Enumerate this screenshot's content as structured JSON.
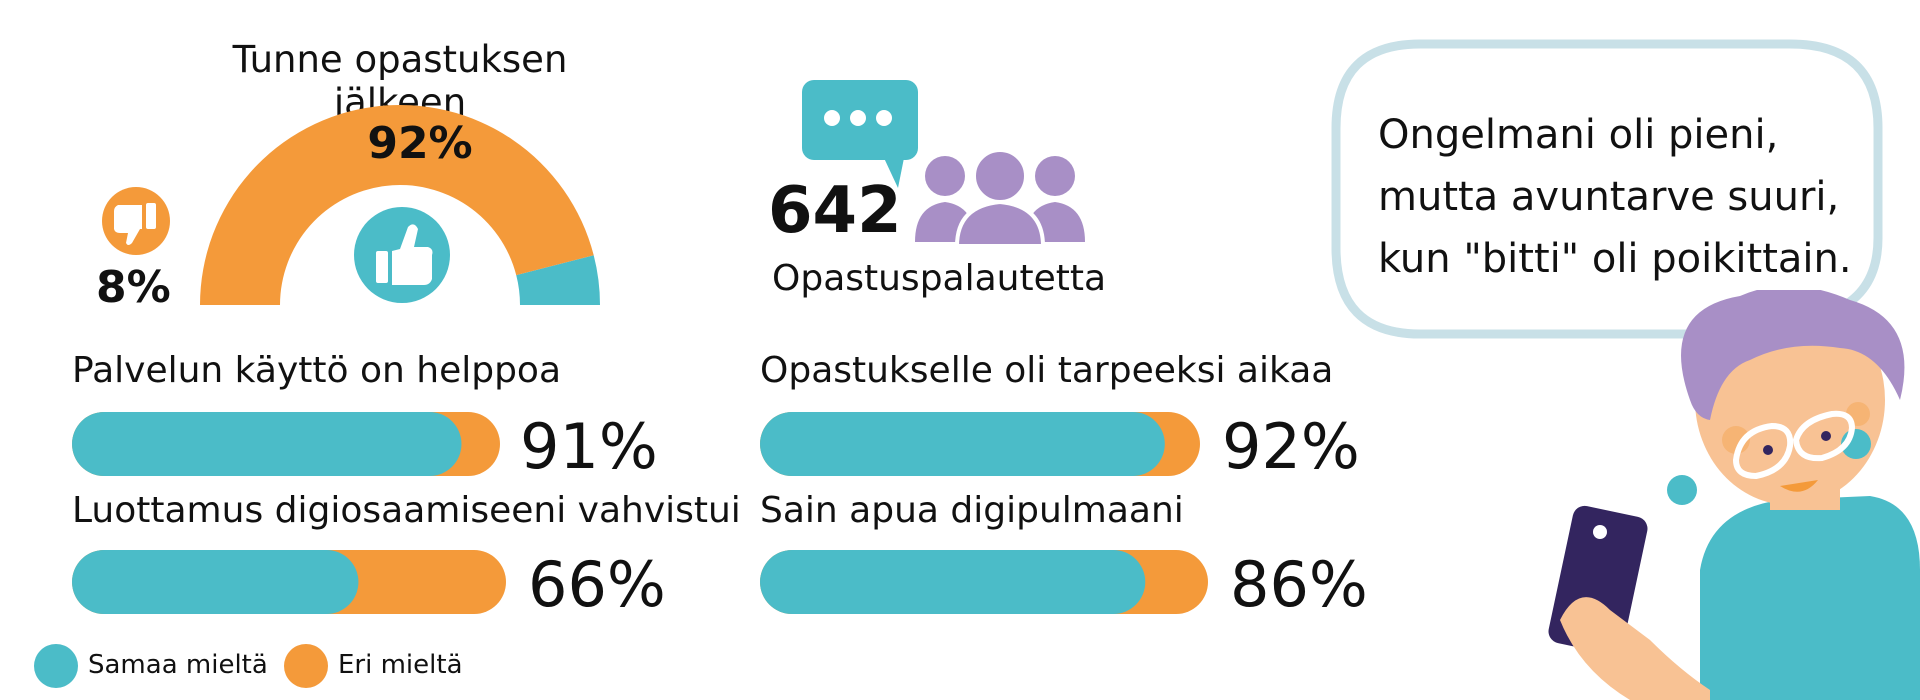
{
  "colors": {
    "agree": "#4bbcc8",
    "disagree": "#f49a3a",
    "people": "#a88fc6",
    "bubble_border": "#c8e0e7",
    "phone": "#33255f",
    "skin": "#f8c294"
  },
  "icons": {
    "thumbs_up": "thumbs-up-icon",
    "thumbs_down": "thumbs-down-icon",
    "chat": "chat-bubble-icon",
    "people": "people-group-icon"
  },
  "gauge": {
    "title": "Tunne opastuksen jälkeen",
    "agree_label": "92%",
    "disagree_label": "8%"
  },
  "feedback": {
    "count": "642",
    "label": "Opastuspalautetta"
  },
  "quote": {
    "lines": [
      "Ongelmani oli pieni,",
      "mutta avuntarve suuri,",
      "kun \"bitti\" oli poikittain."
    ]
  },
  "legend": {
    "agree": "Samaa mieltä",
    "disagree": "Eri mieltä"
  },
  "chart_data": [
    {
      "type": "pie",
      "title": "Tunne opastuksen jälkeen",
      "categories": [
        "Samaa mieltä",
        "Eri mieltä"
      ],
      "values": [
        92,
        8
      ]
    },
    {
      "type": "bar",
      "categories": [
        "Palvelun käyttö on helppoa",
        "Luottamus digiosaamiseeni vahvistui",
        "Opastukselle oli tarpeeksi aikaa",
        "Sain apua digipulmaani"
      ],
      "series": [
        {
          "name": "Samaa mieltä",
          "values": [
            91,
            66,
            92,
            86
          ]
        },
        {
          "name": "Eri mieltä",
          "values": [
            9,
            34,
            8,
            14
          ]
        }
      ],
      "value_labels": [
        "91%",
        "66%",
        "92%",
        "86%"
      ],
      "ylim": [
        0,
        100
      ]
    }
  ]
}
